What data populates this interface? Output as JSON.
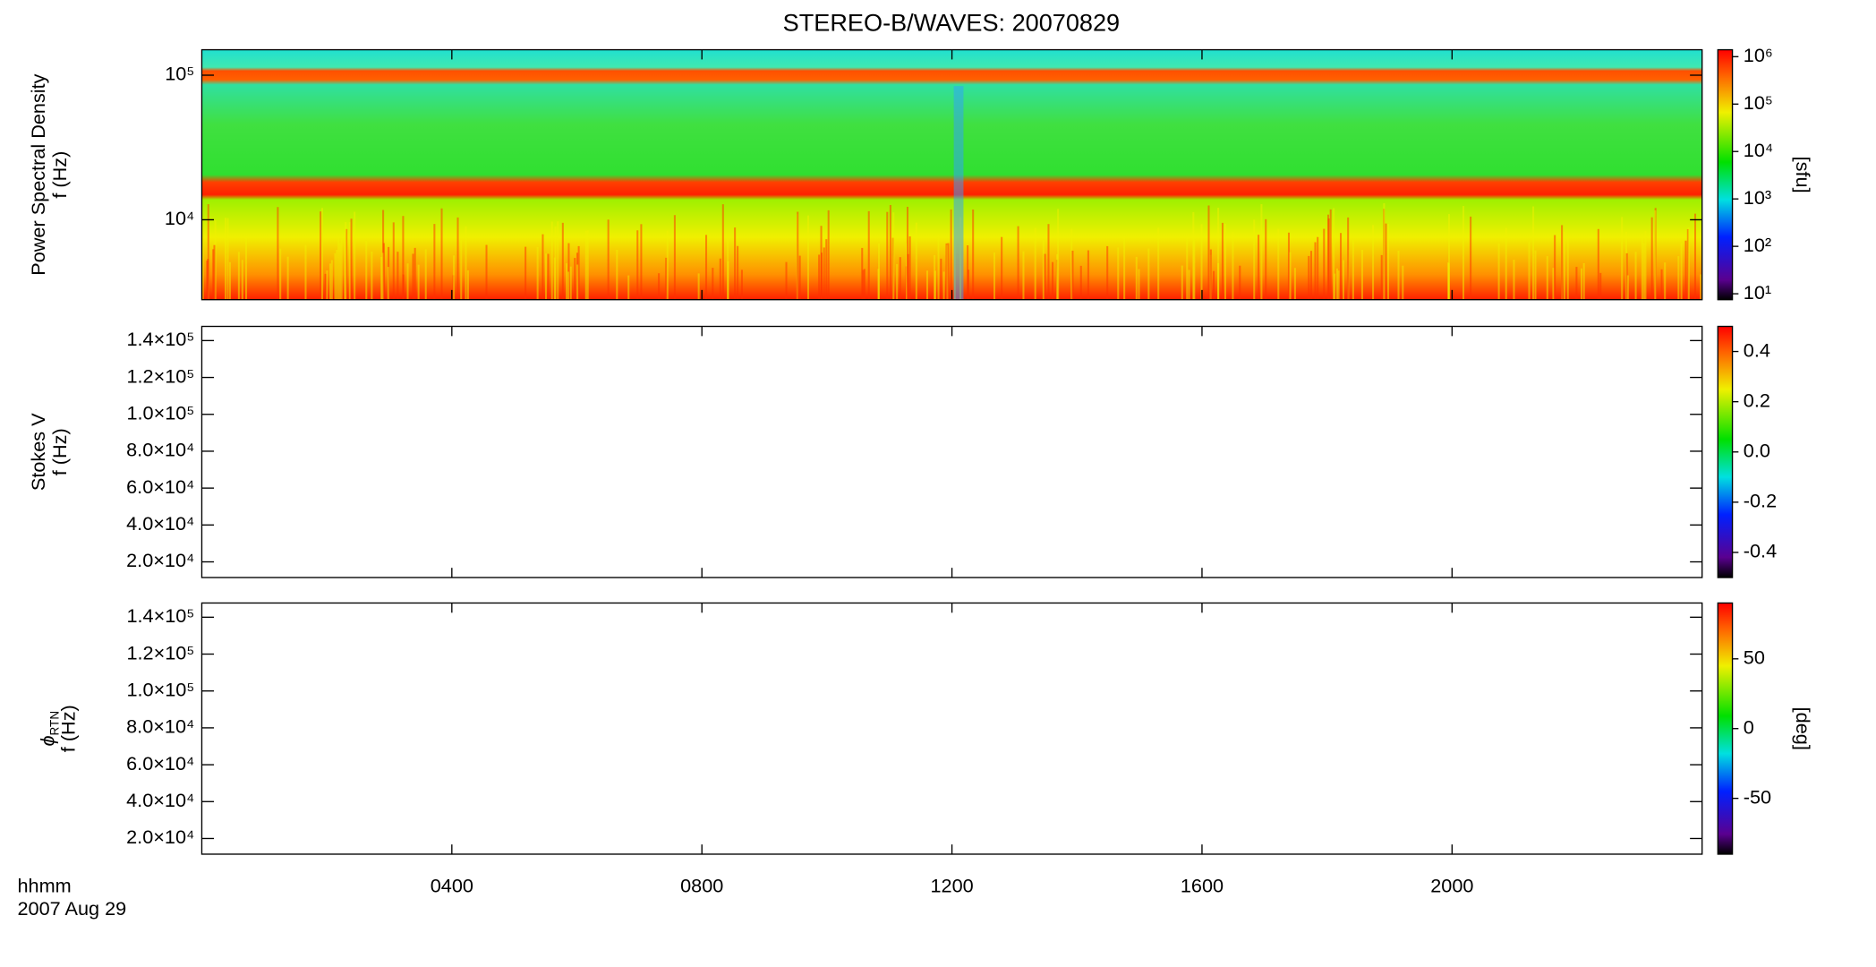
{
  "chart_data": [
    {
      "type": "heatmap",
      "title": "STEREO-B/WAVES: 20070829",
      "ylabel": "Power Spectral Density",
      "ylabel2": "f (Hz)",
      "ylog": true,
      "ylim": [
        2800,
        150000
      ],
      "yticks": [
        {
          "value": 10000,
          "label": "10⁴"
        },
        {
          "value": 100000,
          "label": "10⁵"
        }
      ],
      "colorbar": {
        "label": "[sfu]",
        "log": true,
        "lim": [
          7.5,
          1400000
        ],
        "ticks": [
          {
            "value": 10,
            "label": "10¹"
          },
          {
            "value": 100,
            "label": "10²"
          },
          {
            "value": 1000,
            "label": "10³"
          },
          {
            "value": 10000,
            "label": "10⁴"
          },
          {
            "value": 100000,
            "label": "10⁵"
          },
          {
            "value": 1000000,
            "label": "10⁶"
          }
        ]
      }
    },
    {
      "type": "heatmap",
      "ylabel": "Stokes V",
      "ylabel2": "f (Hz)",
      "ylog": false,
      "ylim": [
        11500,
        147700
      ],
      "yticks": [
        {
          "value": 20000,
          "label": "2.0×10⁴"
        },
        {
          "value": 40000,
          "label": "4.0×10⁴"
        },
        {
          "value": 60000,
          "label": "6.0×10⁴"
        },
        {
          "value": 80000,
          "label": "8.0×10⁴"
        },
        {
          "value": 100000,
          "label": "1.0×10⁵"
        },
        {
          "value": 120000,
          "label": "1.2×10⁵"
        },
        {
          "value": 140000,
          "label": "1.4×10⁵"
        }
      ],
      "colorbar": {
        "log": false,
        "lim": [
          -0.5,
          0.5
        ],
        "ticks": [
          -0.4,
          -0.2,
          {
            "value": 0,
            "label": "0.0"
          },
          0.2,
          0.4
        ]
      }
    },
    {
      "type": "heatmap",
      "ylabel": "ϕ",
      "ylabel_sub": "RTN",
      "ylabel2": "f (Hz)",
      "ylog": false,
      "ylim": [
        11500,
        147700
      ],
      "yticks": [
        {
          "value": 20000,
          "label": "2.0×10⁴"
        },
        {
          "value": 40000,
          "label": "4.0×10⁴"
        },
        {
          "value": 60000,
          "label": "6.0×10⁴"
        },
        {
          "value": 80000,
          "label": "8.0×10⁴"
        },
        {
          "value": 100000,
          "label": "1.0×10⁵"
        },
        {
          "value": 120000,
          "label": "1.2×10⁵"
        },
        {
          "value": 140000,
          "label": "1.4×10⁵"
        }
      ],
      "colorbar": {
        "label": "[deg]",
        "log": false,
        "lim": [
          -90,
          90
        ],
        "ticks": [
          -50,
          0,
          50
        ]
      },
      "xlabel": "hhmm",
      "xlabel2": "2007 Aug 29",
      "xlim": [
        0,
        24
      ],
      "xticks": [
        {
          "value": 4,
          "label": "0400"
        },
        {
          "value": 8,
          "label": "0800"
        },
        {
          "value": 12,
          "label": "1200"
        },
        {
          "value": 16,
          "label": "1600"
        },
        {
          "value": 20,
          "label": "2000"
        }
      ]
    }
  ]
}
